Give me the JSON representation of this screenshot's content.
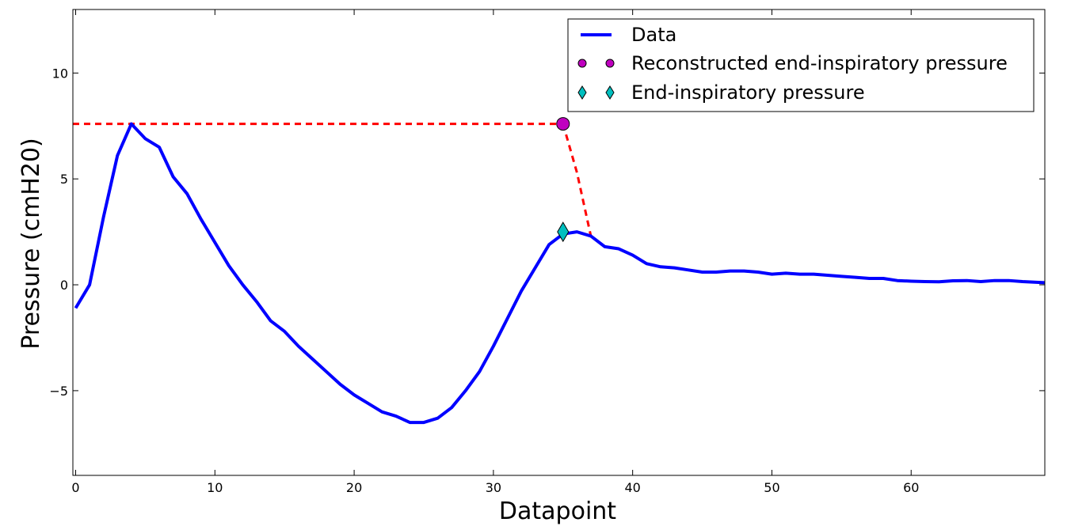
{
  "chart_data": {
    "type": "line",
    "xlabel": "Datapoint",
    "ylabel": "Pressure (cmH20)",
    "xlim": [
      -0.2,
      69.6
    ],
    "ylim": [
      -9,
      13
    ],
    "xticks": [
      0,
      10,
      20,
      30,
      40,
      50,
      60
    ],
    "xtick_labels": [
      "0",
      "10",
      "20",
      "30",
      "40",
      "50",
      "60"
    ],
    "yticks": [
      -5,
      0,
      5,
      10
    ],
    "ytick_labels": [
      "−5",
      "0",
      "5",
      "10"
    ],
    "grid": false,
    "legend_position": "top-right",
    "series": [
      {
        "name": "Data",
        "kind": "line",
        "color": "#0000ff",
        "x": [
          0,
          1,
          2,
          3,
          4,
          5,
          6,
          7,
          8,
          9,
          10,
          11,
          12,
          13,
          14,
          15,
          16,
          17,
          18,
          19,
          20,
          21,
          22,
          23,
          24,
          25,
          26,
          27,
          28,
          29,
          30,
          31,
          32,
          33,
          34,
          35,
          36,
          37,
          38,
          39,
          40,
          41,
          42,
          43,
          44,
          45,
          46,
          47,
          48,
          49,
          50,
          51,
          52,
          53,
          54,
          55,
          56,
          57,
          58,
          59,
          60,
          61,
          62,
          63,
          64,
          65,
          66,
          67,
          68,
          69,
          69.6
        ],
        "y": [
          -1.1,
          0.0,
          3.2,
          6.1,
          7.6,
          6.9,
          6.5,
          5.1,
          4.3,
          3.1,
          2.0,
          0.9,
          0.0,
          -0.8,
          -1.7,
          -2.2,
          -2.9,
          -3.5,
          -4.1,
          -4.7,
          -5.2,
          -5.6,
          -6.0,
          -6.2,
          -6.5,
          -6.5,
          -6.3,
          -5.8,
          -5.0,
          -4.1,
          -2.9,
          -1.6,
          -0.3,
          0.8,
          1.9,
          2.4,
          2.5,
          2.3,
          1.8,
          1.7,
          1.4,
          1.0,
          0.85,
          0.8,
          0.7,
          0.6,
          0.6,
          0.65,
          0.65,
          0.6,
          0.5,
          0.55,
          0.5,
          0.5,
          0.45,
          0.4,
          0.35,
          0.3,
          0.3,
          0.2,
          0.17,
          0.15,
          0.14,
          0.19,
          0.2,
          0.15,
          0.2,
          0.2,
          0.15,
          0.12,
          0.1
        ]
      },
      {
        "name": "Reconstructed end-inspiratory pressure",
        "kind": "marker",
        "marker": "circle",
        "color": "#bf00bf",
        "x": [
          35
        ],
        "y": [
          7.6
        ]
      },
      {
        "name": "End-inspiratory pressure",
        "kind": "marker",
        "marker": "diamond",
        "color": "#00bfbf",
        "x": [
          35
        ],
        "y": [
          2.5
        ]
      }
    ],
    "annotations": [
      {
        "kind": "dashed-line",
        "color": "#ff0000",
        "x": [
          -0.2,
          4,
          35
        ],
        "y": [
          7.6,
          7.6,
          7.6
        ]
      },
      {
        "kind": "dashed-line",
        "color": "#ff0000",
        "x": [
          35,
          36,
          37
        ],
        "y": [
          7.6,
          5.3,
          2.3
        ]
      }
    ],
    "legend": [
      {
        "label": "Data",
        "series": 0
      },
      {
        "label": "Reconstructed end-inspiratory pressure",
        "series": 1
      },
      {
        "label": "End-inspiratory pressure",
        "series": 2
      }
    ]
  }
}
